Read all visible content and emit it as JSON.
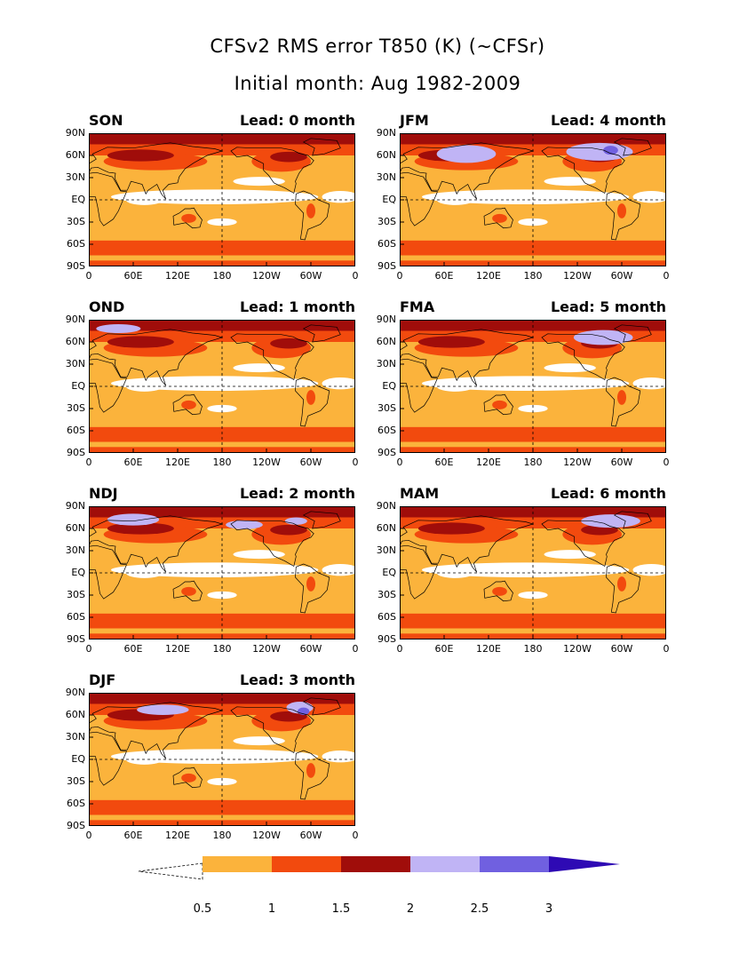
{
  "title": "CFSv2 RMS error T850 (K) (~CFSr)",
  "subtitle": "Initial month: Aug 1982-2009",
  "panels": [
    {
      "season": "SON",
      "lead": "Lead: 0 month"
    },
    {
      "season": "JFM",
      "lead": "Lead: 4 month"
    },
    {
      "season": "OND",
      "lead": "Lead: 1 month"
    },
    {
      "season": "FMA",
      "lead": "Lead: 5 month"
    },
    {
      "season": "NDJ",
      "lead": "Lead: 2 month"
    },
    {
      "season": "MAM",
      "lead": "Lead: 6 month"
    },
    {
      "season": "DJF",
      "lead": "Lead: 3 month"
    }
  ],
  "lat_ticks": [
    "90N",
    "60N",
    "30N",
    "EQ",
    "30S",
    "60S",
    "90S"
  ],
  "lon_ticks": [
    "0",
    "60E",
    "120E",
    "180",
    "120W",
    "60W",
    "0"
  ],
  "colorbar": {
    "levels": [
      "0.5",
      "1",
      "1.5",
      "2",
      "2.5",
      "3"
    ],
    "colors": [
      "#ffffff",
      "#fbb33c",
      "#f24a0e",
      "#a00d0a",
      "#c0b4f5",
      "#7060e0",
      "#2e0ab4"
    ]
  },
  "colors": {
    "white": "#ffffff",
    "orange": "#fbb33c",
    "red": "#f24a0e",
    "darkred": "#a00d0a",
    "lavender": "#c0b4f5",
    "purple": "#7060e0"
  }
}
